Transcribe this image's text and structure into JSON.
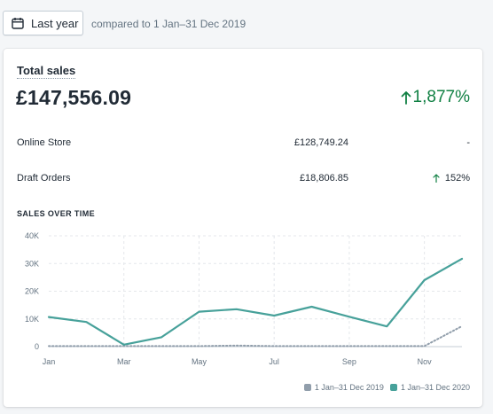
{
  "toolbar": {
    "date_label": "Last year",
    "date_icon": "calendar-icon",
    "compare_text": "compared to 1 Jan–31 Dec 2019"
  },
  "card": {
    "title": "Total sales",
    "total_value": "£147,556.09",
    "total_change": "1,877%",
    "change_color": "#108043",
    "rows": [
      {
        "name": "Online Store",
        "amount": "£128,749.24",
        "change": "-"
      },
      {
        "name": "Draft Orders",
        "amount": "£18,806.85",
        "change": "152%"
      }
    ],
    "chart_heading": "SALES OVER TIME"
  },
  "chart_data": {
    "type": "line",
    "x": [
      "Jan",
      "Feb",
      "Mar",
      "Apr",
      "May",
      "Jun",
      "Jul",
      "Aug",
      "Sep",
      "Oct",
      "Nov",
      "Dec"
    ],
    "x_tick_labels": [
      "Jan",
      "Mar",
      "May",
      "Jul",
      "Sep",
      "Nov"
    ],
    "y_tick_labels": [
      "0",
      "10K",
      "20K",
      "30K",
      "40K"
    ],
    "ylim": [
      0,
      40000
    ],
    "grid": true,
    "legend_placement": "bottom-right",
    "series": [
      {
        "name": "1 Jan–31 Dec 2019",
        "color": "#919eab",
        "style": "dotted",
        "values": [
          200,
          200,
          200,
          200,
          200,
          400,
          200,
          200,
          200,
          200,
          200,
          7400
        ]
      },
      {
        "name": "1 Jan–31 Dec 2020",
        "color": "#47a19a",
        "style": "solid",
        "values": [
          10700,
          8900,
          700,
          3400,
          12600,
          13500,
          11200,
          14400,
          10800,
          7300,
          24000,
          31700
        ]
      }
    ]
  }
}
